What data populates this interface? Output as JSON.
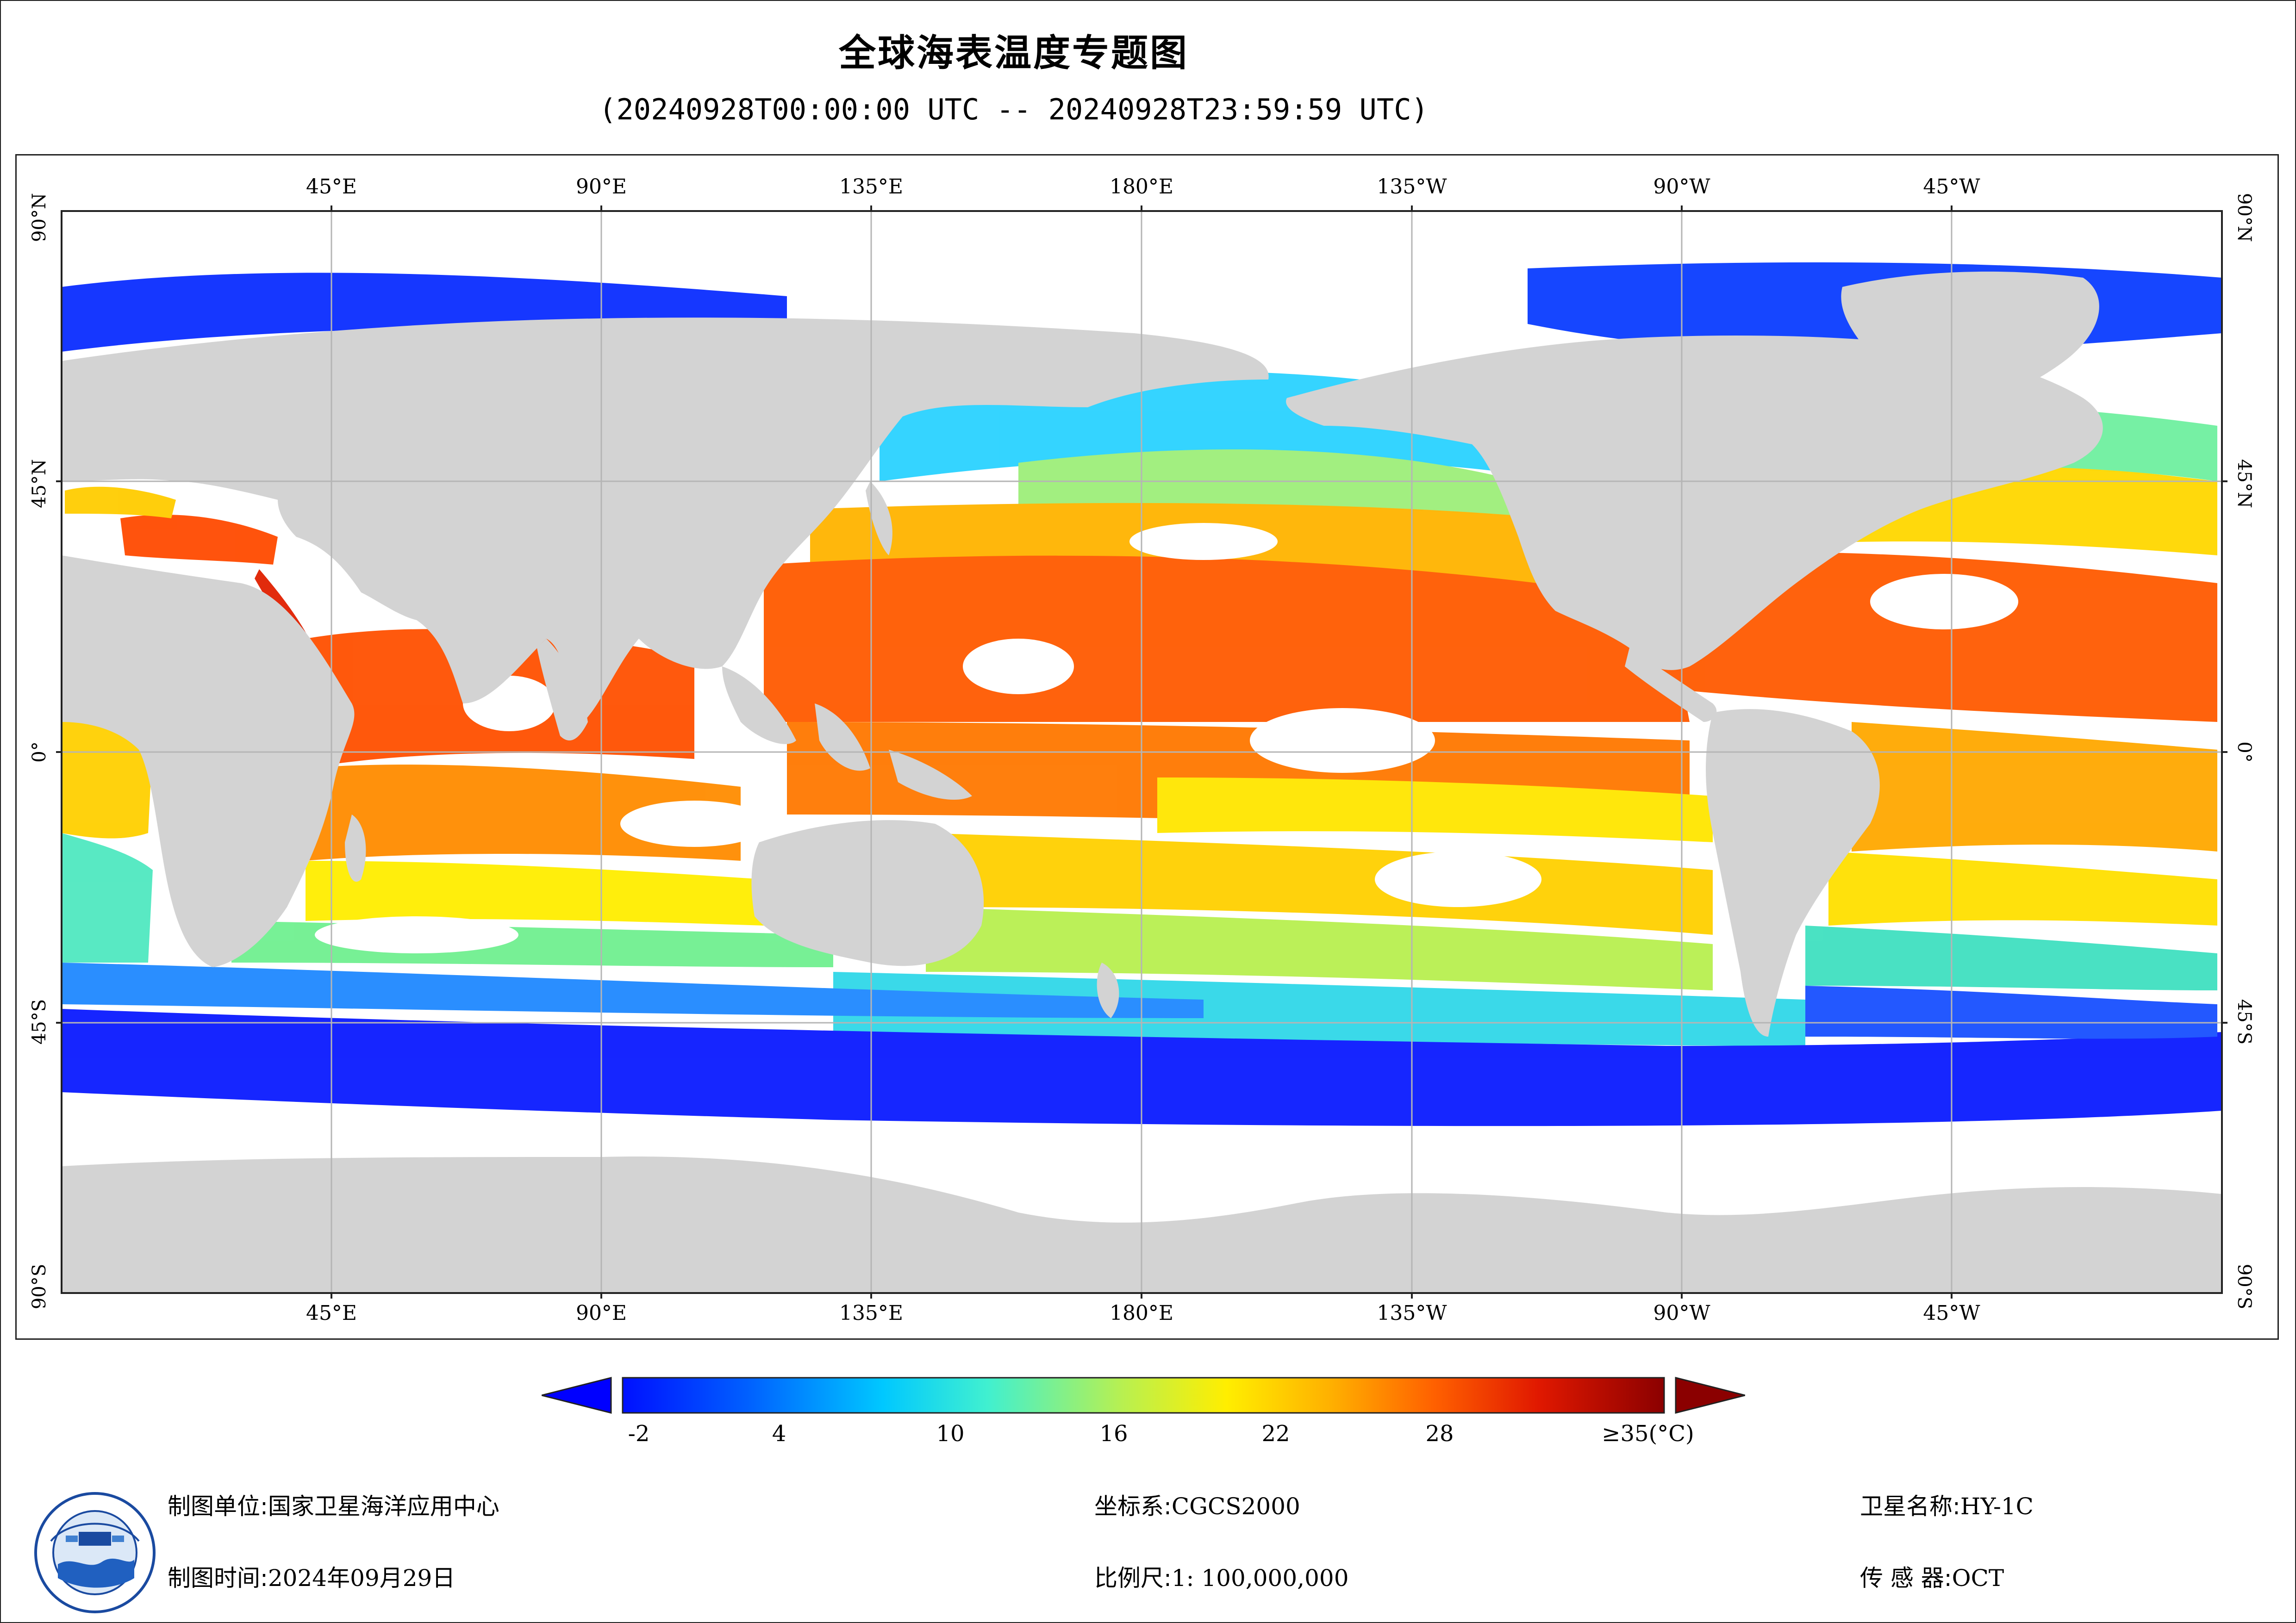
{
  "header": {
    "title": "全球海表温度专题图",
    "subtitle": "(20240928T00:00:00 UTC -- 20240928T23:59:59 UTC)"
  },
  "map": {
    "projection": "equirectangular, centered 180°E",
    "lon_labels": [
      "45°E",
      "90°E",
      "135°E",
      "180°E",
      "135°W",
      "90°W",
      "45°W"
    ],
    "lat_labels": [
      "90°N",
      "45°N",
      "0°",
      "45°S",
      "90°S"
    ],
    "colors": {
      "land": "#d3d3d3",
      "no_data": "#ffffff",
      "grid": "#b5b5b5"
    }
  },
  "colorbar": {
    "ticks": [
      "-2",
      "4",
      "10",
      "16",
      "22",
      "28",
      "≥35(°C)"
    ],
    "min_color": "#0000ff",
    "max_color": "#8b0000"
  },
  "footer": {
    "org_label": "制图单位:",
    "org_value": "国家卫星海洋应用中心",
    "time_label": "制图时间:",
    "time_value": "2024年09月29日",
    "crs_label": "坐标系:",
    "crs_value": "CGCS2000",
    "scale_label": "比例尺:",
    "scale_value": "1: 100,000,000",
    "sat_label": "卫星名称:",
    "sat_value": "HY-1C",
    "sensor_label": "传 感 器:",
    "sensor_value": "OCT"
  },
  "logo": {
    "icon": "nsoas-emblem"
  }
}
